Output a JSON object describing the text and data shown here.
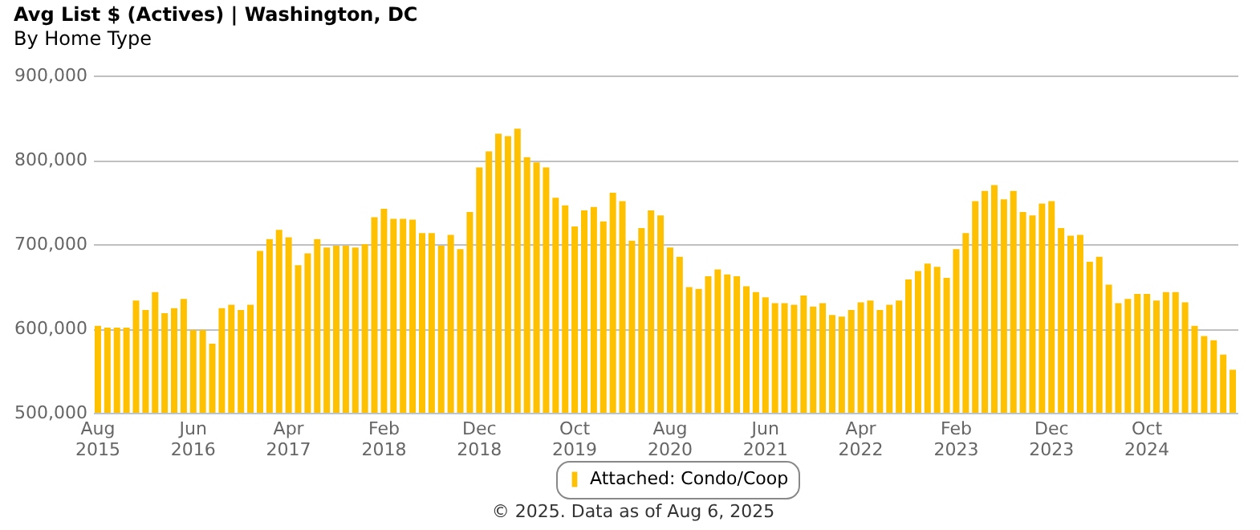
{
  "chart_data": {
    "type": "bar",
    "title": "Avg List $ (Actives) | Washington, DC",
    "subtitle": "By Home Type",
    "categories": [
      "Aug 2015",
      null,
      null,
      null,
      null,
      null,
      null,
      null,
      null,
      null,
      "Jun 2016",
      null,
      null,
      null,
      null,
      null,
      null,
      null,
      null,
      null,
      "Apr 2017",
      null,
      null,
      null,
      null,
      null,
      null,
      null,
      null,
      null,
      "Feb 2018",
      null,
      null,
      null,
      null,
      null,
      null,
      null,
      null,
      null,
      "Dec 2018",
      null,
      null,
      null,
      null,
      null,
      null,
      null,
      null,
      null,
      "Oct 2019",
      null,
      null,
      null,
      null,
      null,
      null,
      null,
      null,
      null,
      "Aug 2020",
      null,
      null,
      null,
      null,
      null,
      null,
      null,
      null,
      null,
      "Jun 2021",
      null,
      null,
      null,
      null,
      null,
      null,
      null,
      null,
      null,
      "Apr 2022",
      null,
      null,
      null,
      null,
      null,
      null,
      null,
      null,
      null,
      "Feb 2023",
      null,
      null,
      null,
      null,
      null,
      null,
      null,
      null,
      null,
      "Dec 2023",
      null,
      null,
      null,
      null,
      null,
      null,
      null,
      null,
      null,
      "Oct 2024",
      null,
      null,
      null,
      null,
      null,
      null,
      null,
      null,
      null
    ],
    "series": [
      {
        "name": "Attached: Condo/Coop",
        "color": "#ffc000",
        "values": [
          603000,
          601000,
          601000,
          601000,
          633000,
          622000,
          643000,
          618000,
          624000,
          635000,
          598000,
          598000,
          582000,
          624000,
          628000,
          622000,
          628000,
          692000,
          706000,
          717000,
          708000,
          675000,
          689000,
          706000,
          696000,
          698000,
          698000,
          696000,
          700000,
          732000,
          742000,
          730000,
          730000,
          729000,
          713000,
          713000,
          698000,
          711000,
          694000,
          738000,
          791000,
          810000,
          831000,
          828000,
          837000,
          803000,
          797000,
          791000,
          755000,
          746000,
          721000,
          740000,
          744000,
          727000,
          761000,
          751000,
          704000,
          719000,
          740000,
          734000,
          696000,
          685000,
          649000,
          647000,
          662000,
          670000,
          664000,
          662000,
          650000,
          643000,
          637000,
          630000,
          630000,
          628000,
          639000,
          626000,
          630000,
          616000,
          614000,
          622000,
          631000,
          633000,
          622000,
          628000,
          633000,
          658000,
          668000,
          677000,
          673000,
          660000,
          694000,
          713000,
          751000,
          763000,
          770000,
          753000,
          763000,
          738000,
          734000,
          748000,
          751000,
          719000,
          710000,
          711000,
          679000,
          685000,
          652000,
          630000,
          635000,
          641000,
          641000,
          633000,
          643000,
          643000,
          631000,
          603000,
          591000,
          586000,
          569000,
          551000
        ]
      }
    ],
    "ylim": [
      500000,
      900000
    ],
    "yticks": [
      {
        "value": 500000,
        "label": "500,000"
      },
      {
        "value": 600000,
        "label": "600,000"
      },
      {
        "value": 700000,
        "label": "700,000"
      },
      {
        "value": 800000,
        "label": "800,000"
      },
      {
        "value": 900000,
        "label": "900,000"
      }
    ],
    "grid": "y",
    "legend": "bottom",
    "annotations": [
      "© 2025. Data as of Aug 6, 2025"
    ]
  }
}
